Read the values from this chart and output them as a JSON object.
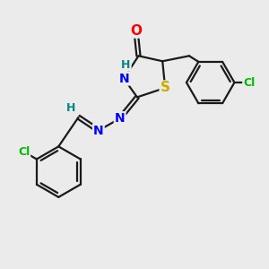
{
  "bg_color": "#ebebeb",
  "bond_color": "#1a1a1a",
  "atom_colors": {
    "O": "#ff0000",
    "N": "#0000ff",
    "S": "#ccaa00",
    "Cl": "#00bb00",
    "H": "#008888",
    "C": "#1a1a1a"
  },
  "bond_lw": 1.6,
  "font_size": 10
}
